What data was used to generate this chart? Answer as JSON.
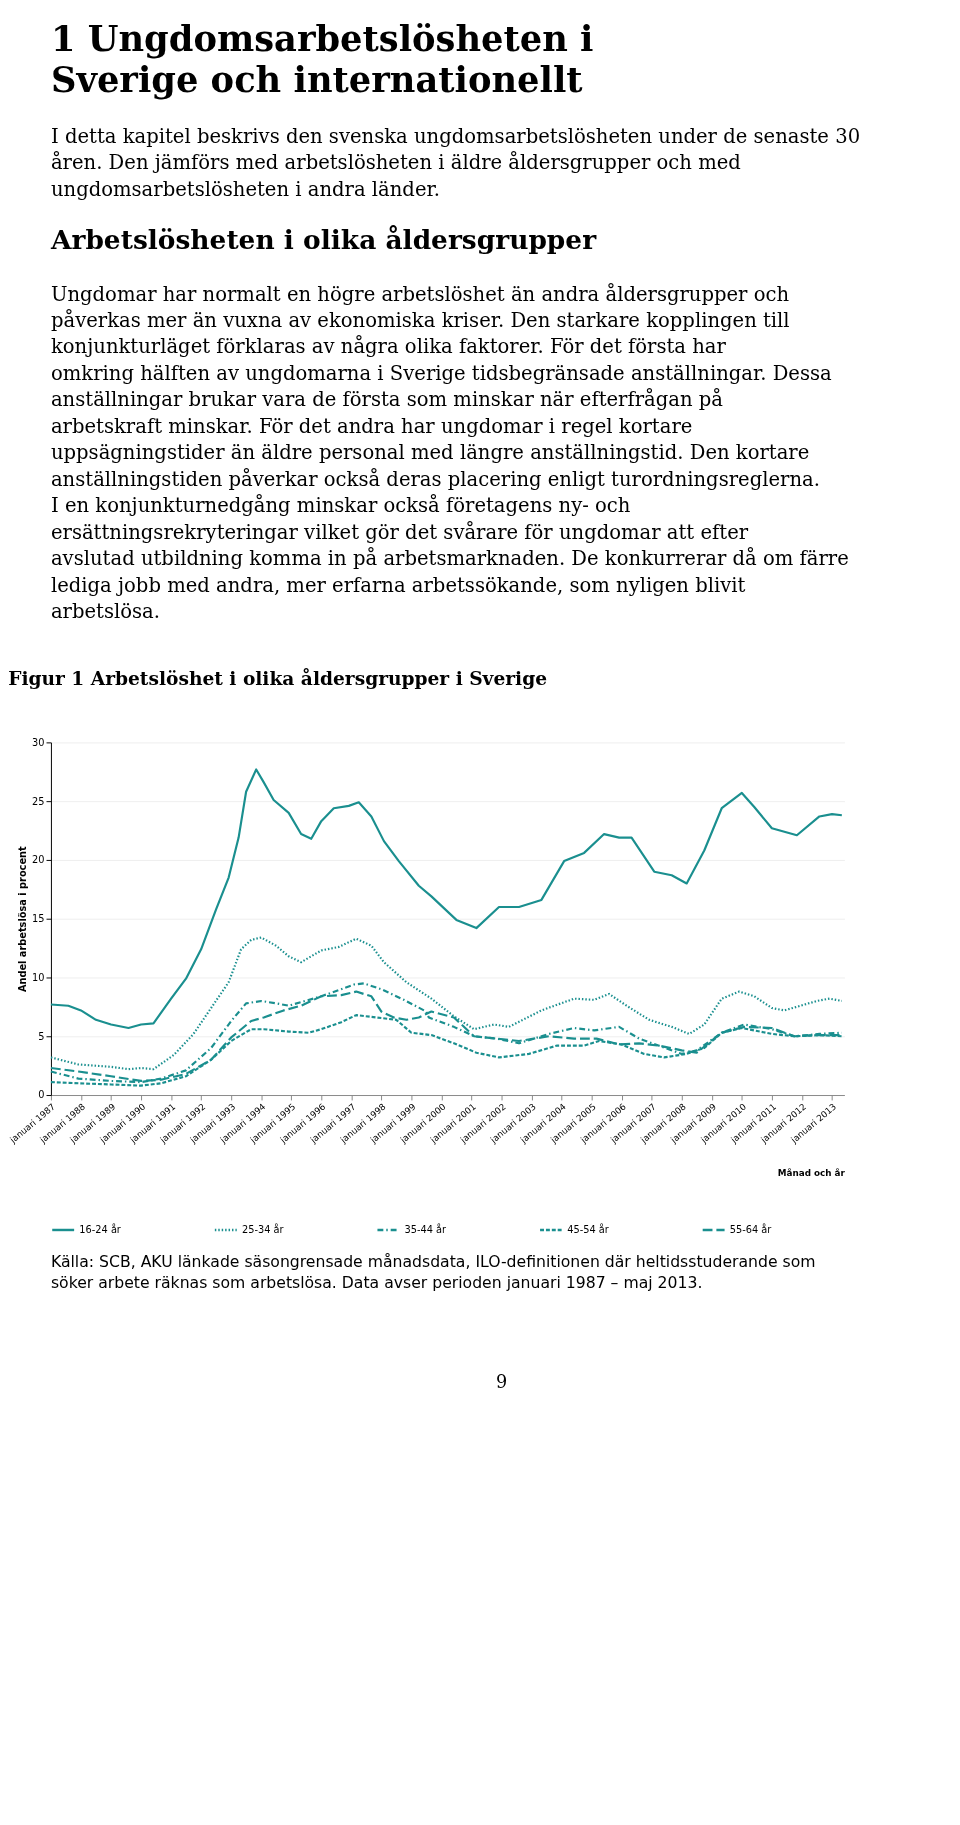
{
  "chart_data": {
    "type": "line",
    "title": "Figur 1 Arbetslöshet i olika åldersgrupper i Sverige",
    "xlabel": "Månad och år",
    "ylabel": "Andel arbetslösa i procent",
    "annotations": [
      "1 Ungdomsarbetslösheten i Sverige och internationellt",
      "I detta kapitel beskrivs den svenska ungdomsarbetslösheten under de senaste 30 åren. Den jämförs med arbetslösheten i äldre åldersgrupper och med ungdomsarbetslösheten i andra länder.",
      "Arbetslösheten i olika åldersgrupper",
      "Ungdomar har normalt en högre arbetslöshet än andra åldersgrupper och påverkas mer än vuxna av ekonomiska kriser. Den starkare kopplingen till konjunkturläget förklaras av några olika faktorer. För det första har omkring hälften av ungdomarna i Sverige tidsbegränsade anställningar. Dessa anställningar brukar vara de första som minskar när efterfrågan på arbetskraft minskar. För det andra har ungdomar i regel kortare uppsägningstider än äldre personal med längre anställningstid. Den kortare anställningstiden påverkar också deras placering enligt turordningsreglerna. I en konjunkturnedgång minskar också företagens ny- och ersättningsrekryteringar vilket gör det svårare för ungdomar att efter avslutad utbildning komma in på arbetsmarknaden. De konkurrerar då om färre lediga jobb med andra, mer erfarna arbetssökande, som nyligen blivit arbetslösa.",
      "Källa: SCB, AKU länkade säsongrensade månadsdata, ILO-definitionen där heltidsstuderande som söker arbete räknas som arbetslösa. Data avser perioden januari 1987 – maj 2013.",
      "9"
    ],
    "xlim": [
      "1987-01",
      "2013-06"
    ],
    "xticks": [
      {
        "value": "1987-01",
        "label": "januari 1987"
      },
      {
        "value": "1988-01",
        "label": "januari 1988"
      },
      {
        "value": "1989-01",
        "label": "januari 1989"
      },
      {
        "value": "1990-01",
        "label": "januari 1990"
      },
      {
        "value": "1991-01",
        "label": "januari 1991"
      },
      {
        "value": "1992-01",
        "label": "januari 1992"
      },
      {
        "value": "1993-01",
        "label": "januari 1993"
      },
      {
        "value": "1994-01",
        "label": "januari 1994"
      },
      {
        "value": "1995-01",
        "label": "januari 1995"
      },
      {
        "value": "1996-01",
        "label": "januari 1996"
      },
      {
        "value": "1997-01",
        "label": "januari 1997"
      },
      {
        "value": "1998-01",
        "label": "januari 1998"
      },
      {
        "value": "1999-01",
        "label": "januari 1999"
      },
      {
        "value": "2000-01",
        "label": "januari 2000"
      },
      {
        "value": "2001-01",
        "label": "januari 2001"
      },
      {
        "value": "2002-01",
        "label": "januari 2002"
      },
      {
        "value": "2003-01",
        "label": "januari 2003"
      },
      {
        "value": "2004-01",
        "label": "januari 2004"
      },
      {
        "value": "2005-01",
        "label": "januari 2005"
      },
      {
        "value": "2006-01",
        "label": "januari 2006"
      },
      {
        "value": "2007-01",
        "label": "januari 2007"
      },
      {
        "value": "2008-01",
        "label": "januari 2008"
      },
      {
        "value": "2009-01",
        "label": "januari 2009"
      },
      {
        "value": "2010-01",
        "label": "januari 2010"
      },
      {
        "value": "2011-01",
        "label": "januari 2011"
      },
      {
        "value": "2012-01",
        "label": "januari 2012"
      },
      {
        "value": "2013-01",
        "label": "januari 2013"
      }
    ],
    "ylim": [
      0,
      30
    ],
    "yticks": [
      0,
      5,
      10,
      15,
      20,
      25,
      30
    ],
    "grid": "y",
    "legend": "bottom",
    "marker": "none",
    "series": [
      {
        "name": "16-24 år",
        "color": "#1a8f8f",
        "line_style": "solid",
        "x": [
          "1987-01",
          "1987-08",
          "1988-01",
          "1988-07",
          "1989-01",
          "1989-08",
          "1990-01",
          "1990-06",
          "1991-01",
          "1991-07",
          "1992-01",
          "1992-07",
          "1992-12",
          "1993-04",
          "1993-07",
          "1993-11",
          "1994-02",
          "1994-06",
          "1994-12",
          "1995-05",
          "1995-09",
          "1996-01",
          "1996-06",
          "1996-12",
          "1997-04",
          "1997-09",
          "1998-02",
          "1998-08",
          "1999-04",
          "1999-09",
          "2000-07",
          "2001-03",
          "2001-12",
          "2002-08",
          "2003-05",
          "2004-02",
          "2004-10",
          "2005-06",
          "2005-12",
          "2006-05",
          "2007-02",
          "2007-09",
          "2008-03",
          "2008-10",
          "2009-05",
          "2010-01",
          "2010-06",
          "2011-01",
          "2011-11",
          "2012-08",
          "2013-01",
          "2013-05"
        ],
        "values": [
          7.7,
          7.6,
          7.2,
          6.4,
          6.0,
          5.7,
          6.0,
          6.1,
          8.2,
          9.9,
          12.4,
          15.8,
          18.5,
          21.9,
          25.8,
          27.7,
          26.6,
          25.1,
          24.0,
          22.2,
          21.8,
          23.3,
          24.4,
          24.6,
          24.9,
          23.7,
          21.6,
          19.9,
          17.8,
          16.9,
          14.9,
          14.2,
          16.0,
          16.0,
          16.6,
          19.9,
          20.6,
          22.2,
          21.9,
          21.9,
          19.0,
          18.7,
          18.0,
          20.8,
          24.4,
          25.7,
          24.5,
          22.7,
          22.1,
          23.7,
          23.9,
          23.8
        ]
      },
      {
        "name": "25-34 år",
        "color": "#1a8f8f",
        "line_style": "dotted",
        "x": [
          "1987-01",
          "1987-12",
          "1989-01",
          "1989-08",
          "1990-01",
          "1990-06",
          "1991-02",
          "1991-10",
          "1992-05",
          "1992-12",
          "1993-05",
          "1993-09",
          "1994-01",
          "1994-07",
          "1994-12",
          "1995-05",
          "1996-01",
          "1996-08",
          "1997-03",
          "1997-09",
          "1998-02",
          "1998-11",
          "1999-09",
          "2000-06",
          "2001-02",
          "2001-10",
          "2002-04",
          "2003-05",
          "2004-06",
          "2005-02",
          "2005-08",
          "2006-03",
          "2006-12",
          "2007-09",
          "2008-04",
          "2008-10",
          "2009-05",
          "2009-12",
          "2010-06",
          "2011-01",
          "2011-06",
          "2012-07",
          "2012-12",
          "2013-05"
        ],
        "values": [
          3.2,
          2.6,
          2.4,
          2.2,
          2.3,
          2.2,
          3.4,
          5.2,
          7.4,
          9.6,
          12.4,
          13.2,
          13.4,
          12.7,
          11.8,
          11.3,
          12.3,
          12.6,
          13.3,
          12.7,
          11.3,
          9.6,
          8.2,
          6.7,
          5.6,
          6.0,
          5.8,
          7.2,
          8.2,
          8.1,
          8.6,
          7.6,
          6.4,
          5.8,
          5.2,
          6.0,
          8.2,
          8.8,
          8.4,
          7.4,
          7.2,
          8.0,
          8.2,
          8.0
        ]
      },
      {
        "name": "35-44 år",
        "color": "#1a8f8f",
        "line_style": "dashed",
        "x": [
          "1987-01",
          "1987-12",
          "1989-01",
          "1990-01",
          "1990-09",
          "1991-07",
          "1992-05",
          "1993-01",
          "1993-07",
          "1994-01",
          "1994-07",
          "1994-12",
          "1996-01",
          "1997-02",
          "1997-06",
          "1998-01",
          "1998-10",
          "1999-07",
          "1999-08",
          "2000-06",
          "2001-02",
          "2001-11",
          "2002-08",
          "2003-08",
          "2004-06",
          "2005-02",
          "2005-12",
          "2006-08",
          "2007-04",
          "2008-01",
          "2008-07",
          "2009-05",
          "2010-02",
          "2011-01",
          "2011-10",
          "2012-08",
          "2013-05"
        ],
        "values": [
          2.0,
          1.4,
          1.2,
          1.1,
          1.4,
          2.1,
          4.0,
          6.3,
          7.8,
          8.0,
          7.8,
          7.6,
          8.4,
          9.4,
          9.5,
          9.0,
          8.1,
          7.1,
          6.6,
          5.8,
          5.0,
          4.8,
          4.4,
          5.2,
          5.7,
          5.5,
          5.8,
          4.8,
          4.2,
          3.5,
          3.8,
          5.3,
          6.0,
          5.6,
          5.0,
          5.2,
          5.3
        ]
      },
      {
        "name": "45-54 år",
        "color": "#1a8f8f",
        "line_style": "dashed",
        "x": [
          "1987-01",
          "1987-12",
          "1989-01",
          "1990-01",
          "1990-09",
          "1991-07",
          "1992-05",
          "1993-01",
          "1993-09",
          "1994-02",
          "1994-12",
          "1995-08",
          "1996-01",
          "1996-09",
          "1997-03",
          "1997-11",
          "1998-07",
          "1999-01",
          "1999-09",
          "2000-06",
          "2001-03",
          "2001-12",
          "2002-12",
          "2003-11",
          "2004-10",
          "2005-04",
          "2006-01",
          "2006-10",
          "2007-06",
          "2008-03",
          "2008-10",
          "2009-05",
          "2010-01",
          "2011-01",
          "2011-10",
          "2012-08",
          "2013-05"
        ],
        "values": [
          1.1,
          1.0,
          0.9,
          0.8,
          1.0,
          1.6,
          3.0,
          4.6,
          5.6,
          5.6,
          5.4,
          5.3,
          5.6,
          6.2,
          6.8,
          6.6,
          6.4,
          5.3,
          5.1,
          4.4,
          3.6,
          3.2,
          3.5,
          4.2,
          4.2,
          4.6,
          4.3,
          3.5,
          3.2,
          3.5,
          4.0,
          5.3,
          5.7,
          5.2,
          5.0,
          5.1,
          5.0
        ]
      },
      {
        "name": "55-64 år",
        "color": "#1a8f8f",
        "line_style": "dashed",
        "x": [
          "1987-01",
          "1987-12",
          "1989-01",
          "1990-01",
          "1990-09",
          "1991-07",
          "1992-05",
          "1993-01",
          "1993-09",
          "1994-02",
          "1994-10",
          "1995-05",
          "1996-01",
          "1996-09",
          "1997-03",
          "1997-09",
          "1998-01",
          "1998-06",
          "1998-11",
          "1999-04",
          "1999-09",
          "2000-06",
          "2001-02",
          "2001-11",
          "2002-08",
          "2003-08",
          "2004-06",
          "2005-03",
          "2005-12",
          "2006-08",
          "2007-04",
          "2008-01",
          "2008-07",
          "2009-05",
          "2010-02",
          "2011-01",
          "2011-10",
          "2012-08",
          "2013-05"
        ],
        "values": [
          2.3,
          2.0,
          1.6,
          1.2,
          1.3,
          1.8,
          3.0,
          4.9,
          6.3,
          6.6,
          7.2,
          7.6,
          8.4,
          8.5,
          8.8,
          8.4,
          7.1,
          6.6,
          6.4,
          6.6,
          7.1,
          6.6,
          5.0,
          4.8,
          4.6,
          5.0,
          4.8,
          4.8,
          4.3,
          4.4,
          4.2,
          3.8,
          3.6,
          5.3,
          5.8,
          5.7,
          5.0,
          5.1,
          5.1
        ]
      }
    ]
  }
}
